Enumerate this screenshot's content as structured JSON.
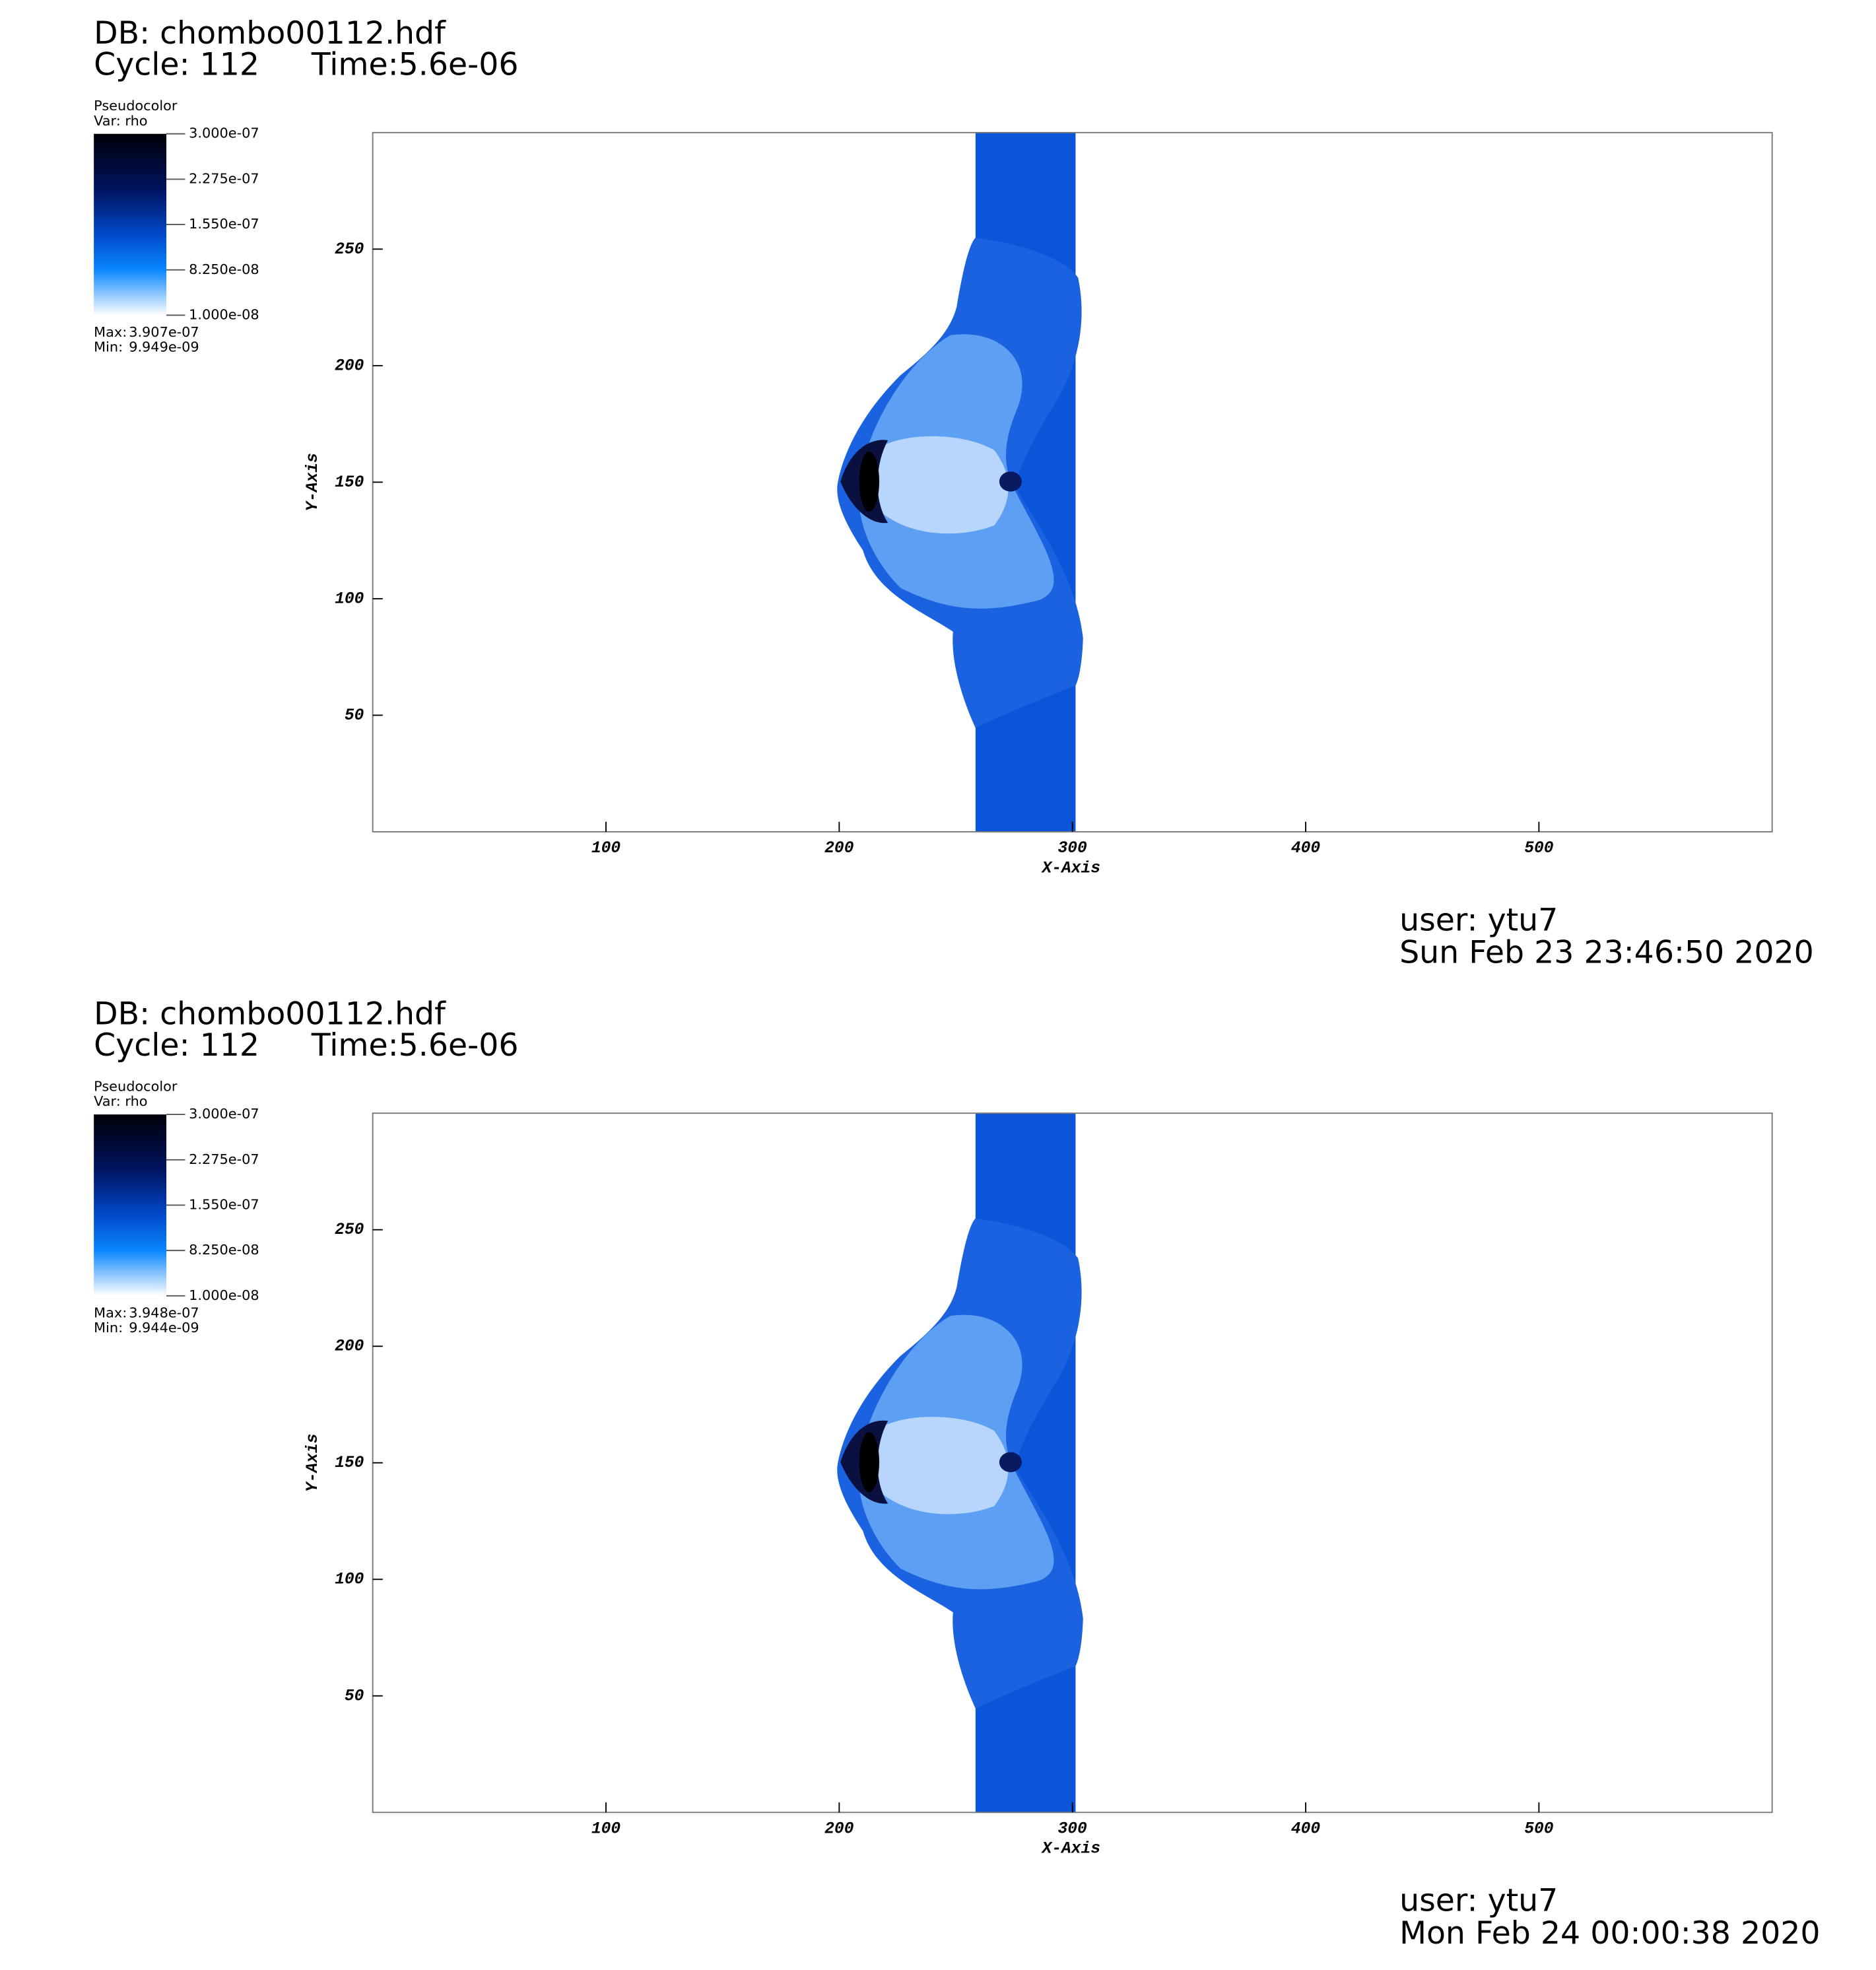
{
  "chart_data": [
    {
      "type": "pseudocolor",
      "database": "DB: chombo00112.hdf",
      "cycle": "Cycle: 112",
      "time": "Time:5.6e-06",
      "legend_title": "Pseudocolor",
      "variable": "Var: rho",
      "clim": [
        1e-08,
        3e-07
      ],
      "colorbar_ticks": [
        {
          "value": 3e-07,
          "label": "3.000e-07"
        },
        {
          "value": 2.275e-07,
          "label": "2.275e-07"
        },
        {
          "value": 1.55e-07,
          "label": "1.550e-07"
        },
        {
          "value": 8.25e-08,
          "label": "8.250e-08"
        },
        {
          "value": 1e-08,
          "label": "1.000e-08"
        }
      ],
      "max_label": "Max:",
      "max": "3.907e-07",
      "min_label": "Min:",
      "min": "9.949e-09",
      "xlabel": "X-Axis",
      "ylabel": "Y-Axis",
      "xlim": [
        0,
        600
      ],
      "ylim": [
        0,
        300
      ],
      "xticks": [
        100,
        200,
        300,
        400,
        500
      ],
      "yticks": [
        50,
        100,
        150,
        200,
        250
      ],
      "user": "user: ytu7",
      "date": "Sun Feb 23 23:46:50 2020"
    },
    {
      "type": "pseudocolor",
      "database": "DB: chombo00112.hdf",
      "cycle": "Cycle: 112",
      "time": "Time:5.6e-06",
      "legend_title": "Pseudocolor",
      "variable": "Var: rho",
      "clim": [
        1e-08,
        3e-07
      ],
      "colorbar_ticks": [
        {
          "value": 3e-07,
          "label": "3.000e-07"
        },
        {
          "value": 2.275e-07,
          "label": "2.275e-07"
        },
        {
          "value": 1.55e-07,
          "label": "1.550e-07"
        },
        {
          "value": 8.25e-08,
          "label": "8.250e-08"
        },
        {
          "value": 1e-08,
          "label": "1.000e-08"
        }
      ],
      "max_label": "Max:",
      "max": "3.948e-07",
      "min_label": "Min:",
      "min": "9.944e-09",
      "xlabel": "X-Axis",
      "ylabel": "Y-Axis",
      "xlim": [
        0,
        600
      ],
      "ylim": [
        0,
        300
      ],
      "xticks": [
        100,
        200,
        300,
        400,
        500
      ],
      "yticks": [
        50,
        100,
        150,
        200,
        250
      ],
      "user": "user: ytu7",
      "date": "Mon Feb 24 00:00:38 2020"
    }
  ]
}
